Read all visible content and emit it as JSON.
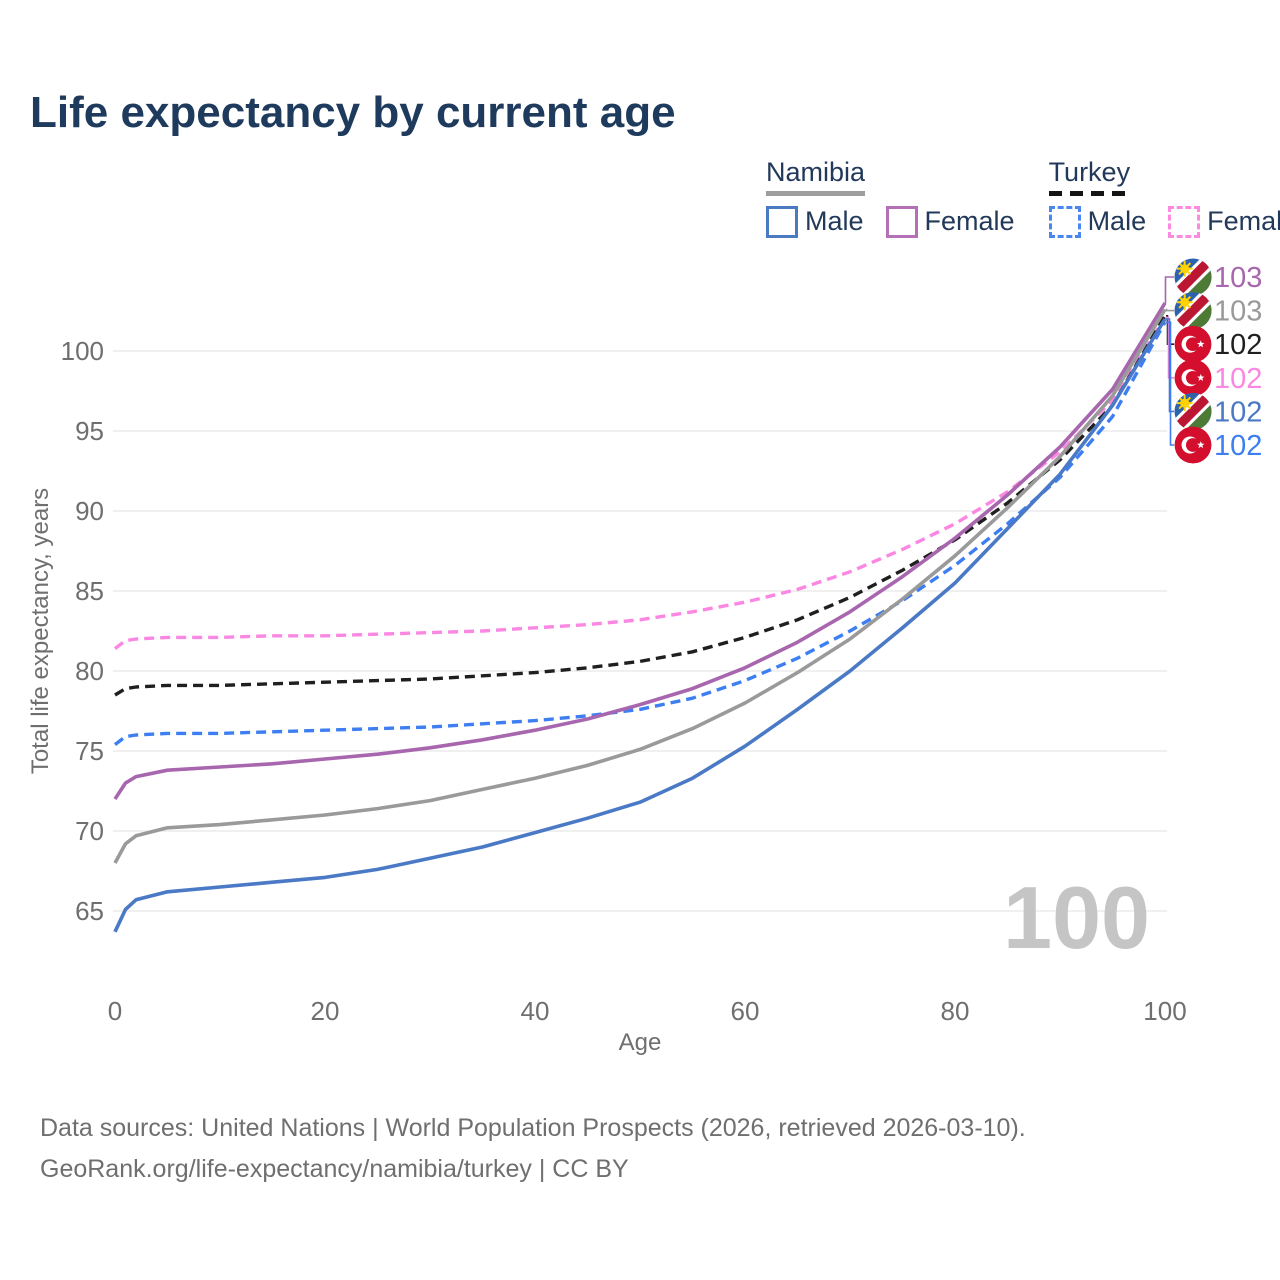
{
  "title": "Life expectancy by current age",
  "legend": {
    "groups": [
      {
        "country": "Namibia",
        "underline_style": "solid",
        "underline_color": "#9e9e9e",
        "items": [
          {
            "label": "Male",
            "color": "#4a7ac2",
            "dashed": false
          },
          {
            "label": "Female",
            "color": "#b470b4",
            "dashed": false
          }
        ]
      },
      {
        "country": "Turkey",
        "underline_style": "dashed",
        "underline_color": "#141414",
        "items": [
          {
            "label": "Male",
            "color": "#4a86f0",
            "dashed": true
          },
          {
            "label": "Female",
            "color": "#fb8ae0",
            "dashed": true
          }
        ]
      }
    ]
  },
  "chart_data": {
    "type": "line",
    "title": "Life expectancy by current age",
    "xlabel": "Age",
    "ylabel": "Total life expectancy, years",
    "x_ticks": [
      0,
      20,
      40,
      60,
      80,
      100
    ],
    "y_ticks": [
      65,
      70,
      75,
      80,
      85,
      90,
      95,
      100
    ],
    "xlim": [
      0,
      100
    ],
    "ylim": [
      62,
      104
    ],
    "grid": "horizontal",
    "legend_position": "top-right",
    "watermark": "100",
    "x": [
      0,
      1,
      2,
      5,
      10,
      15,
      20,
      25,
      30,
      35,
      40,
      45,
      50,
      55,
      60,
      65,
      70,
      75,
      80,
      85,
      90,
      95,
      100
    ],
    "series": [
      {
        "id": "turkey-female",
        "name": "Turkey Female",
        "country": "Turkey",
        "color": "#fb87e3",
        "dashed": true,
        "end_label": "102",
        "values": [
          81.4,
          81.9,
          82.0,
          82.1,
          82.1,
          82.2,
          82.2,
          82.3,
          82.4,
          82.5,
          82.7,
          82.9,
          83.2,
          83.7,
          84.3,
          85.1,
          86.2,
          87.6,
          89.2,
          91.2,
          93.7,
          96.9,
          102.1
        ]
      },
      {
        "id": "turkey-both",
        "name": "Turkey",
        "country": "Turkey",
        "color": "#1f1f1f",
        "dashed": true,
        "end_label": "102",
        "values": [
          78.5,
          78.9,
          79.0,
          79.1,
          79.1,
          79.2,
          79.3,
          79.4,
          79.5,
          79.7,
          79.9,
          80.2,
          80.6,
          81.2,
          82.1,
          83.2,
          84.6,
          86.3,
          88.2,
          90.5,
          93.2,
          96.6,
          102.2
        ]
      },
      {
        "id": "turkey-male",
        "name": "Turkey Male",
        "country": "Turkey",
        "color": "#3d7ff2",
        "dashed": true,
        "end_label": "102",
        "values": [
          75.4,
          75.9,
          76.0,
          76.1,
          76.1,
          76.2,
          76.3,
          76.4,
          76.5,
          76.7,
          76.9,
          77.2,
          77.6,
          78.3,
          79.4,
          80.8,
          82.5,
          84.4,
          86.6,
          89.2,
          92.1,
          95.9,
          101.8
        ]
      },
      {
        "id": "namibia-female",
        "name": "Namibia Female",
        "country": "Namibia",
        "color": "#a866ae",
        "dashed": false,
        "end_label": "103",
        "values": [
          72.0,
          73.0,
          73.4,
          73.8,
          74.0,
          74.2,
          74.5,
          74.8,
          75.2,
          75.7,
          76.3,
          77.0,
          77.9,
          78.9,
          80.2,
          81.8,
          83.7,
          85.9,
          88.3,
          91.0,
          94.0,
          97.6,
          103.0
        ]
      },
      {
        "id": "namibia-both",
        "name": "Namibia",
        "country": "Namibia",
        "color": "#9a9a9a",
        "dashed": false,
        "end_label": "103",
        "values": [
          68.0,
          69.2,
          69.7,
          70.2,
          70.4,
          70.7,
          71.0,
          71.4,
          71.9,
          72.6,
          73.3,
          74.1,
          75.1,
          76.4,
          78.0,
          79.9,
          82.0,
          84.5,
          87.2,
          90.2,
          93.4,
          97.2,
          102.6
        ]
      },
      {
        "id": "namibia-male",
        "name": "Namibia Male",
        "country": "Namibia",
        "color": "#4a79c5",
        "dashed": false,
        "end_label": "102",
        "values": [
          63.7,
          65.1,
          65.7,
          66.2,
          66.5,
          66.8,
          67.1,
          67.6,
          68.3,
          69.0,
          69.9,
          70.8,
          71.8,
          73.3,
          75.3,
          77.6,
          80.0,
          82.7,
          85.5,
          88.9,
          92.3,
          96.6,
          102.0
        ]
      }
    ]
  },
  "footer": {
    "line1": "Data sources: United Nations | World Population Prospects (2026, retrieved 2026-03-10).",
    "line2": "GeoRank.org/life-expectancy/namibia/turkey | CC BY"
  }
}
